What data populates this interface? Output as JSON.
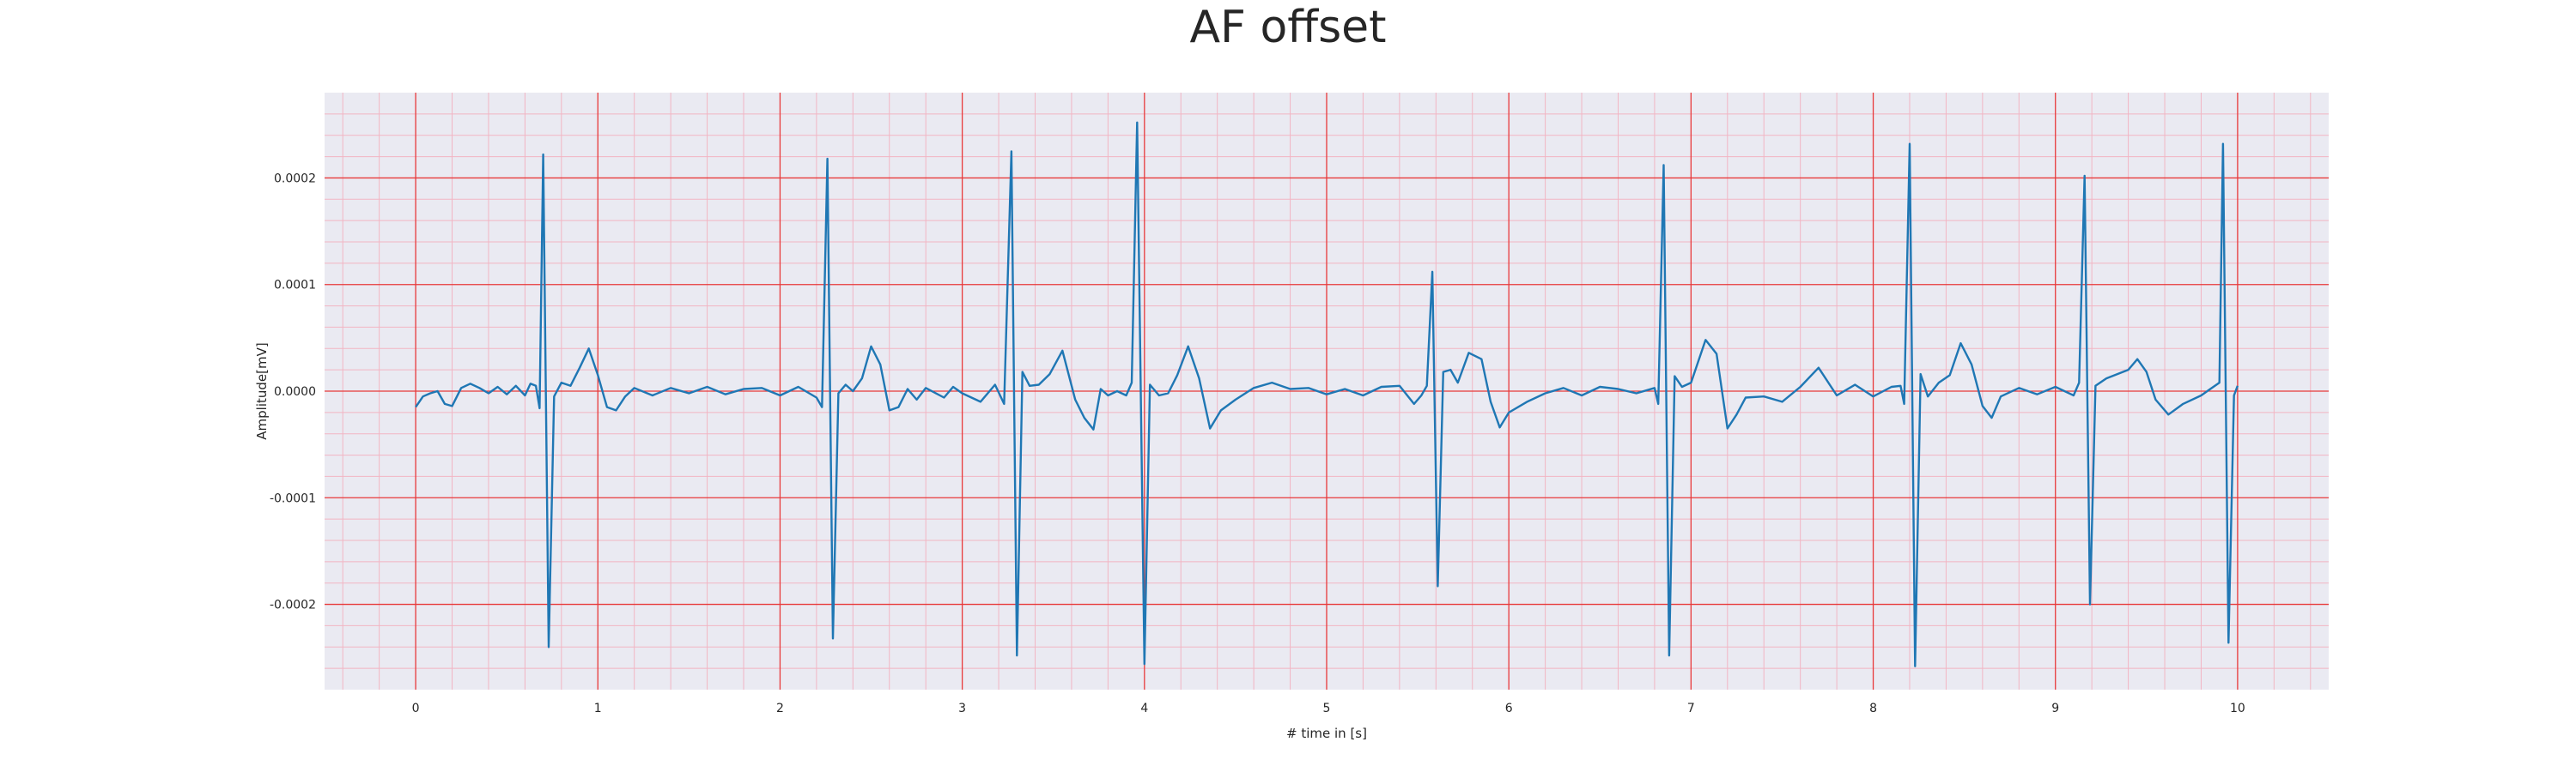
{
  "chart_data": {
    "type": "line",
    "title": "AF offset",
    "xlabel": "# time in [s]",
    "ylabel": "Amplitude[mV]",
    "xlim": [
      -0.5,
      10.5
    ],
    "ylim": [
      -0.00028,
      0.00028
    ],
    "xticks": [
      0,
      1,
      2,
      3,
      4,
      5,
      6,
      7,
      8,
      9,
      10
    ],
    "yticks": [
      -0.0002,
      -0.0001,
      0.0,
      0.0001,
      0.0002
    ],
    "ytick_labels": [
      "-0.0002",
      "-0.0001",
      "0.0000",
      "0.0001",
      "0.0002"
    ],
    "grid": true,
    "minor_grid": true,
    "colors": {
      "line": "#1f77b4",
      "major_grid": "#e8393a",
      "minor_grid": "#f2b5c3",
      "plot_background": "#eaeaf2"
    },
    "series": [
      {
        "values": [
          [
            0.0,
            -1.5e-05
          ],
          [
            0.04,
            -5e-06
          ],
          [
            0.08,
            -2e-06
          ],
          [
            0.12,
            0.0
          ],
          [
            0.16,
            -1.2e-05
          ],
          [
            0.2,
            -1.4e-05
          ],
          [
            0.25,
            3e-06
          ],
          [
            0.3,
            7e-06
          ],
          [
            0.35,
            3e-06
          ],
          [
            0.4,
            -2e-06
          ],
          [
            0.45,
            4e-06
          ],
          [
            0.5,
            -3e-06
          ],
          [
            0.55,
            5e-06
          ],
          [
            0.6,
            -4e-06
          ],
          [
            0.63,
            7e-06
          ],
          [
            0.66,
            5e-06
          ],
          [
            0.68,
            -1.6e-05
          ],
          [
            0.7,
            0.000222
          ],
          [
            0.73,
            -0.00024
          ],
          [
            0.76,
            -5e-06
          ],
          [
            0.8,
            8e-06
          ],
          [
            0.85,
            5e-06
          ],
          [
            0.9,
            2.2e-05
          ],
          [
            0.95,
            4e-05
          ],
          [
            1.0,
            1.5e-05
          ],
          [
            1.05,
            -1.5e-05
          ],
          [
            1.1,
            -1.8e-05
          ],
          [
            1.15,
            -5e-06
          ],
          [
            1.2,
            3e-06
          ],
          [
            1.3,
            -4e-06
          ],
          [
            1.4,
            3e-06
          ],
          [
            1.5,
            -2e-06
          ],
          [
            1.6,
            4e-06
          ],
          [
            1.7,
            -3e-06
          ],
          [
            1.8,
            2e-06
          ],
          [
            1.9,
            3e-06
          ],
          [
            2.0,
            -4e-06
          ],
          [
            2.1,
            4e-06
          ],
          [
            2.2,
            -6e-06
          ],
          [
            2.23,
            -1.5e-05
          ],
          [
            2.26,
            0.000218
          ],
          [
            2.29,
            -0.000232
          ],
          [
            2.32,
            -2e-06
          ],
          [
            2.36,
            6e-06
          ],
          [
            2.4,
            0.0
          ],
          [
            2.45,
            1.2e-05
          ],
          [
            2.5,
            4.2e-05
          ],
          [
            2.55,
            2.5e-05
          ],
          [
            2.6,
            -1.8e-05
          ],
          [
            2.65,
            -1.5e-05
          ],
          [
            2.7,
            2e-06
          ],
          [
            2.75,
            -8e-06
          ],
          [
            2.8,
            3e-06
          ],
          [
            2.9,
            -6e-06
          ],
          [
            2.95,
            4e-06
          ],
          [
            3.0,
            -2e-06
          ],
          [
            3.1,
            -1e-05
          ],
          [
            3.18,
            6e-06
          ],
          [
            3.23,
            -1.2e-05
          ],
          [
            3.27,
            0.000225
          ],
          [
            3.3,
            -0.000248
          ],
          [
            3.33,
            1.8e-05
          ],
          [
            3.37,
            5e-06
          ],
          [
            3.42,
            6e-06
          ],
          [
            3.48,
            1.6e-05
          ],
          [
            3.55,
            3.8e-05
          ],
          [
            3.62,
            -8e-06
          ],
          [
            3.67,
            -2.5e-05
          ],
          [
            3.72,
            -3.6e-05
          ],
          [
            3.76,
            2e-06
          ],
          [
            3.8,
            -4e-06
          ],
          [
            3.85,
            0.0
          ],
          [
            3.9,
            -4e-06
          ],
          [
            3.93,
            8e-06
          ],
          [
            3.96,
            0.000252
          ],
          [
            4.0,
            -0.000256
          ],
          [
            4.03,
            6e-06
          ],
          [
            4.08,
            -4e-06
          ],
          [
            4.13,
            -2e-06
          ],
          [
            4.18,
            1.5e-05
          ],
          [
            4.24,
            4.2e-05
          ],
          [
            4.3,
            1.2e-05
          ],
          [
            4.36,
            -3.5e-05
          ],
          [
            4.42,
            -1.8e-05
          ],
          [
            4.5,
            -8e-06
          ],
          [
            4.6,
            3e-06
          ],
          [
            4.7,
            8e-06
          ],
          [
            4.8,
            2e-06
          ],
          [
            4.9,
            3e-06
          ],
          [
            5.0,
            -3e-06
          ],
          [
            5.1,
            2e-06
          ],
          [
            5.2,
            -4e-06
          ],
          [
            5.3,
            4e-06
          ],
          [
            5.4,
            5e-06
          ],
          [
            5.48,
            -1.2e-05
          ],
          [
            5.52,
            -4e-06
          ],
          [
            5.55,
            5e-06
          ],
          [
            5.58,
            0.000112
          ],
          [
            5.61,
            -0.000183
          ],
          [
            5.64,
            1.8e-05
          ],
          [
            5.68,
            2e-05
          ],
          [
            5.72,
            8e-06
          ],
          [
            5.78,
            3.6e-05
          ],
          [
            5.85,
            3e-05
          ],
          [
            5.9,
            -1e-05
          ],
          [
            5.95,
            -3.4e-05
          ],
          [
            6.0,
            -2e-05
          ],
          [
            6.1,
            -1e-05
          ],
          [
            6.2,
            -2e-06
          ],
          [
            6.3,
            3e-06
          ],
          [
            6.4,
            -4e-06
          ],
          [
            6.5,
            4e-06
          ],
          [
            6.6,
            2e-06
          ],
          [
            6.7,
            -2e-06
          ],
          [
            6.8,
            3e-06
          ],
          [
            6.82,
            -1.2e-05
          ],
          [
            6.85,
            0.000212
          ],
          [
            6.88,
            -0.000248
          ],
          [
            6.91,
            1.4e-05
          ],
          [
            6.95,
            4e-06
          ],
          [
            7.0,
            8e-06
          ],
          [
            7.08,
            4.8e-05
          ],
          [
            7.14,
            3.5e-05
          ],
          [
            7.2,
            -3.5e-05
          ],
          [
            7.25,
            -2.2e-05
          ],
          [
            7.3,
            -6e-06
          ],
          [
            7.4,
            -5e-06
          ],
          [
            7.5,
            -1e-05
          ],
          [
            7.6,
            4e-06
          ],
          [
            7.7,
            2.2e-05
          ],
          [
            7.8,
            -4e-06
          ],
          [
            7.9,
            6e-06
          ],
          [
            8.0,
            -5e-06
          ],
          [
            8.1,
            4e-06
          ],
          [
            8.15,
            5e-06
          ],
          [
            8.17,
            -1.2e-05
          ],
          [
            8.2,
            0.000232
          ],
          [
            8.23,
            -0.000258
          ],
          [
            8.26,
            1.6e-05
          ],
          [
            8.3,
            -5e-06
          ],
          [
            8.36,
            8e-06
          ],
          [
            8.42,
            1.5e-05
          ],
          [
            8.48,
            4.5e-05
          ],
          [
            8.54,
            2.5e-05
          ],
          [
            8.6,
            -1.4e-05
          ],
          [
            8.65,
            -2.5e-05
          ],
          [
            8.7,
            -5e-06
          ],
          [
            8.8,
            3e-06
          ],
          [
            8.9,
            -3e-06
          ],
          [
            9.0,
            4e-06
          ],
          [
            9.1,
            -4e-06
          ],
          [
            9.13,
            8e-06
          ],
          [
            9.16,
            0.000202
          ],
          [
            9.19,
            -0.0002
          ],
          [
            9.22,
            5e-06
          ],
          [
            9.28,
            1.2e-05
          ],
          [
            9.34,
            1.6e-05
          ],
          [
            9.4,
            2e-05
          ],
          [
            9.45,
            3e-05
          ],
          [
            9.5,
            1.8e-05
          ],
          [
            9.55,
            -8e-06
          ],
          [
            9.62,
            -2.2e-05
          ],
          [
            9.7,
            -1.2e-05
          ],
          [
            9.8,
            -4e-06
          ],
          [
            9.85,
            2e-06
          ],
          [
            9.9,
            8e-06
          ],
          [
            9.92,
            0.000232
          ],
          [
            9.95,
            -0.000236
          ],
          [
            9.98,
            -4e-06
          ],
          [
            10.0,
            5e-06
          ]
        ]
      }
    ]
  }
}
